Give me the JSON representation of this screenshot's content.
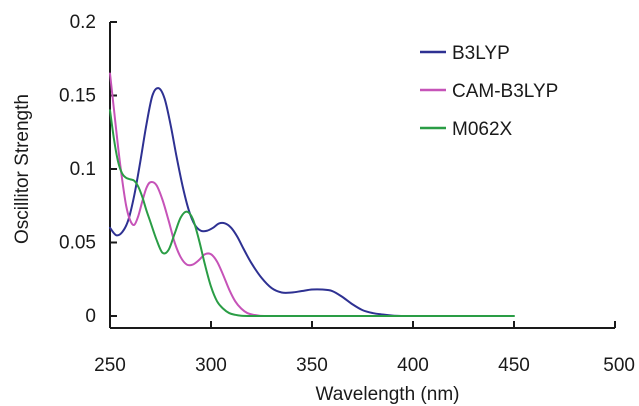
{
  "chart_data": {
    "type": "line",
    "title": "",
    "xlabel": "Wavelength (nm)",
    "ylabel": "Oscillitor Strength",
    "xlim": [
      250,
      500
    ],
    "ylim": [
      0,
      0.2
    ],
    "x_ticks": [
      250,
      300,
      350,
      400,
      450,
      500
    ],
    "x_tick_labels": [
      "250",
      "300",
      "350",
      "400",
      "450",
      "500"
    ],
    "y_ticks": [
      0,
      0.05,
      0.1,
      0.15,
      0.2
    ],
    "y_tick_labels": [
      "0",
      "0.05",
      "0.1",
      "0.15",
      "0.2"
    ],
    "grid": false,
    "legend_position": "top-right",
    "series": [
      {
        "name": "B3LYP",
        "color": "#2e3192",
        "x": [
          250,
          253,
          256,
          259,
          262,
          265,
          268,
          271,
          274,
          277,
          280,
          283,
          286,
          289,
          292,
          295,
          298,
          301,
          304,
          307,
          310,
          313,
          316,
          320,
          325,
          330,
          335,
          340,
          345,
          350,
          355,
          360,
          365,
          370,
          375,
          380,
          385,
          390,
          395
        ],
        "y": [
          0.06,
          0.055,
          0.057,
          0.065,
          0.082,
          0.105,
          0.13,
          0.15,
          0.155,
          0.148,
          0.13,
          0.108,
          0.088,
          0.072,
          0.062,
          0.058,
          0.058,
          0.06,
          0.063,
          0.063,
          0.06,
          0.054,
          0.046,
          0.036,
          0.026,
          0.019,
          0.016,
          0.016,
          0.017,
          0.018,
          0.018,
          0.017,
          0.013,
          0.008,
          0.004,
          0.002,
          0.001,
          0.0003,
          0
        ]
      },
      {
        "name": "CAM-B3LYP",
        "color": "#c653b8",
        "x": [
          250,
          252,
          254,
          256,
          258,
          260,
          262,
          264,
          266,
          268,
          270,
          273,
          276,
          279,
          282,
          285,
          288,
          291,
          294,
          297,
          300,
          303,
          306,
          309,
          312,
          315,
          318,
          321,
          324,
          327
        ],
        "y": [
          0.165,
          0.14,
          0.115,
          0.093,
          0.075,
          0.065,
          0.062,
          0.068,
          0.078,
          0.087,
          0.091,
          0.089,
          0.079,
          0.065,
          0.05,
          0.04,
          0.035,
          0.035,
          0.038,
          0.042,
          0.042,
          0.037,
          0.028,
          0.018,
          0.01,
          0.005,
          0.002,
          0.0008,
          0.0002,
          0
        ]
      },
      {
        "name": "M062X",
        "color": "#2a9d45",
        "x": [
          250,
          252,
          254,
          256,
          258,
          260,
          262,
          264,
          266,
          268,
          270,
          273,
          276,
          279,
          282,
          285,
          288,
          291,
          294,
          297,
          300,
          303,
          306,
          309,
          312,
          315,
          320,
          330,
          350,
          400,
          450
        ],
        "y": [
          0.14,
          0.12,
          0.105,
          0.097,
          0.094,
          0.093,
          0.092,
          0.088,
          0.081,
          0.072,
          0.064,
          0.052,
          0.043,
          0.045,
          0.056,
          0.067,
          0.071,
          0.066,
          0.052,
          0.035,
          0.02,
          0.01,
          0.005,
          0.002,
          0.0008,
          0.0002,
          0,
          0,
          0,
          0,
          0
        ]
      }
    ]
  }
}
